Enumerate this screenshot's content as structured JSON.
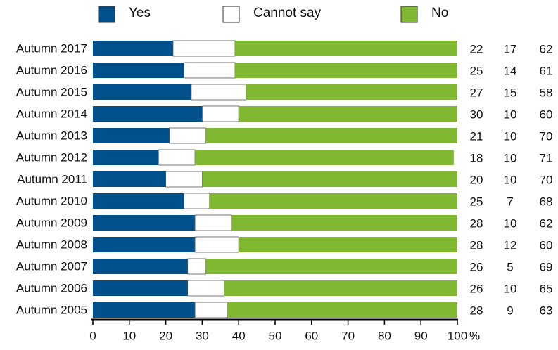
{
  "chart_data": {
    "type": "bar",
    "orientation": "horizontal",
    "stacked": true,
    "categories": [
      "Autumn 2017",
      "Autumn 2016",
      "Autumn 2015",
      "Autumn 2014",
      "Autumn 2013",
      "Autumn 2012",
      "Autumn 2011",
      "Autumn 2010",
      "Autumn 2009",
      "Autumn 2008",
      "Autumn 2007",
      "Autumn 2006",
      "Autumn 2005"
    ],
    "series": [
      {
        "name": "Yes",
        "color": "#00508c",
        "values": [
          22,
          25,
          27,
          30,
          21,
          18,
          20,
          25,
          28,
          28,
          26,
          26,
          28
        ]
      },
      {
        "name": "Cannot say",
        "color": "#ffffff",
        "values": [
          17,
          14,
          15,
          10,
          10,
          10,
          10,
          7,
          10,
          12,
          5,
          10,
          9
        ]
      },
      {
        "name": "No",
        "color": "#80b832",
        "values": [
          62,
          61,
          58,
          60,
          70,
          71,
          70,
          68,
          62,
          60,
          69,
          65,
          63
        ]
      }
    ],
    "xlim": [
      0,
      100
    ],
    "xticks": [
      "0",
      "10",
      "20",
      "30",
      "40",
      "50",
      "60",
      "70",
      "80",
      "90",
      "100"
    ],
    "x_unit": "%",
    "legend_position": "top",
    "grid": false
  }
}
